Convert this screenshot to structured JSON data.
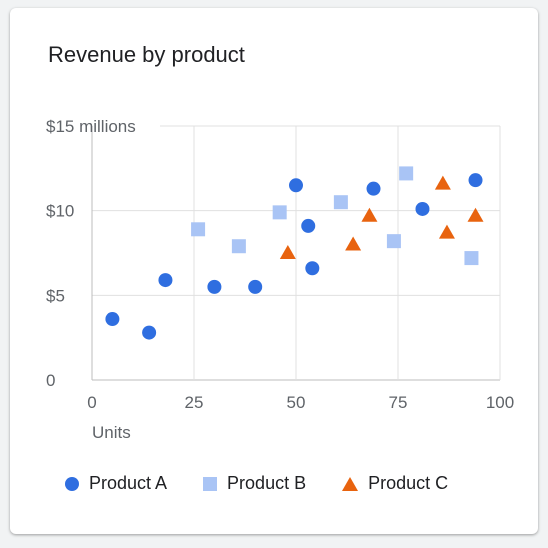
{
  "colors": {
    "product_a": "#2f6ee0",
    "product_b": "#a9c4f5",
    "product_c": "#e8630f",
    "grid": "#e0e0e0",
    "axis": "#bdbdbd"
  },
  "legend_icons": {
    "product_a": "circle",
    "product_b": "square",
    "product_c": "triangle"
  },
  "chart_data": {
    "type": "scatter",
    "title": "Revenue by product",
    "xlabel": "Units",
    "ylabel": "",
    "xlim": [
      0,
      100
    ],
    "ylim": [
      0,
      15
    ],
    "x_ticks": [
      "0",
      "25",
      "50",
      "75",
      "100"
    ],
    "y_ticks": [
      "0",
      "$5",
      "$10",
      "$15 millions"
    ],
    "grid": true,
    "legend_position": "bottom",
    "series": [
      {
        "name": "Product A",
        "marker": "circle",
        "x": [
          5,
          14,
          18,
          30,
          40,
          50,
          53,
          54,
          69,
          81,
          94
        ],
        "y": [
          3.6,
          2.8,
          5.9,
          5.5,
          5.5,
          11.5,
          9.1,
          6.6,
          11.3,
          10.1,
          11.8
        ]
      },
      {
        "name": "Product B",
        "marker": "square",
        "x": [
          26,
          36,
          46,
          61,
          74,
          77,
          93
        ],
        "y": [
          8.9,
          7.9,
          9.9,
          10.5,
          8.2,
          12.2,
          7.2
        ]
      },
      {
        "name": "Product C",
        "marker": "triangle",
        "x": [
          48,
          64,
          68,
          86,
          87,
          94
        ],
        "y": [
          7.5,
          8.0,
          9.7,
          11.6,
          8.7,
          9.7
        ]
      }
    ]
  }
}
